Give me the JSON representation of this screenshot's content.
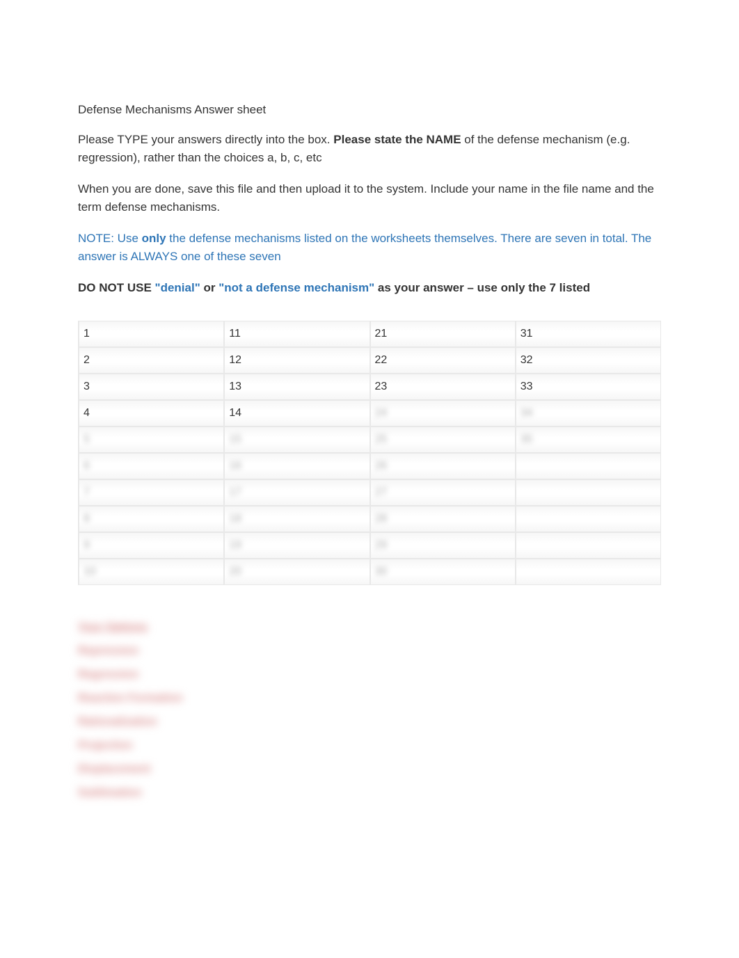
{
  "title": "Defense Mechanisms Answer sheet",
  "instruction1_part1": "Please TYPE your answers directly into the box. ",
  "instruction1_bold": "Please state the NAME ",
  "instruction1_part2": "of the defense mechanism (e.g. regression), rather than the choices a, b, c, etc",
  "instruction2": "When you are done, save this file and then upload it to the system. Include your name in the file name and the term defense mechanisms.",
  "note_part1": "NOTE: Use ",
  "note_bold": "only ",
  "note_part2": "the defense mechanisms listed on the worksheets themselves. There are seven in total. The answer is ALWAYS one of these seven",
  "donot_part1": "DO NOT USE ",
  "donot_blue1": "\"denial\" ",
  "donot_part2": "or ",
  "donot_blue2": "\"not a defense mechanism\" ",
  "donot_part3": "as your answer – use only the 7 listed",
  "table": {
    "columns": [
      {
        "visible": [
          "1",
          "2",
          "3",
          "4"
        ],
        "blurred": [
          "5",
          "6",
          "7",
          "8",
          "9",
          "10"
        ]
      },
      {
        "visible": [
          "11",
          "12",
          "13",
          "14"
        ],
        "blurred": [
          "15",
          "16",
          "17",
          "18",
          "19",
          "20"
        ]
      },
      {
        "visible": [
          "21",
          "22",
          "23"
        ],
        "blurred": [
          "24",
          "25",
          "26",
          "27",
          "28",
          "29",
          "30"
        ]
      },
      {
        "visible": [
          "31",
          "32",
          "33"
        ],
        "blurred": [
          "34",
          "35",
          "",
          "",
          "",
          "",
          ""
        ]
      }
    ]
  },
  "options": {
    "header": "Your Options",
    "items": [
      "Repression",
      "Regression",
      "Reaction Formation",
      "Rationalization",
      "Projection",
      "Displacement",
      "Sublimation"
    ]
  },
  "colors": {
    "text": "#333333",
    "blue": "#2e75b6",
    "row_bg": "#f6f6f6",
    "row_border": "#e8e8e8",
    "blurred_red": "#d88a8a"
  }
}
